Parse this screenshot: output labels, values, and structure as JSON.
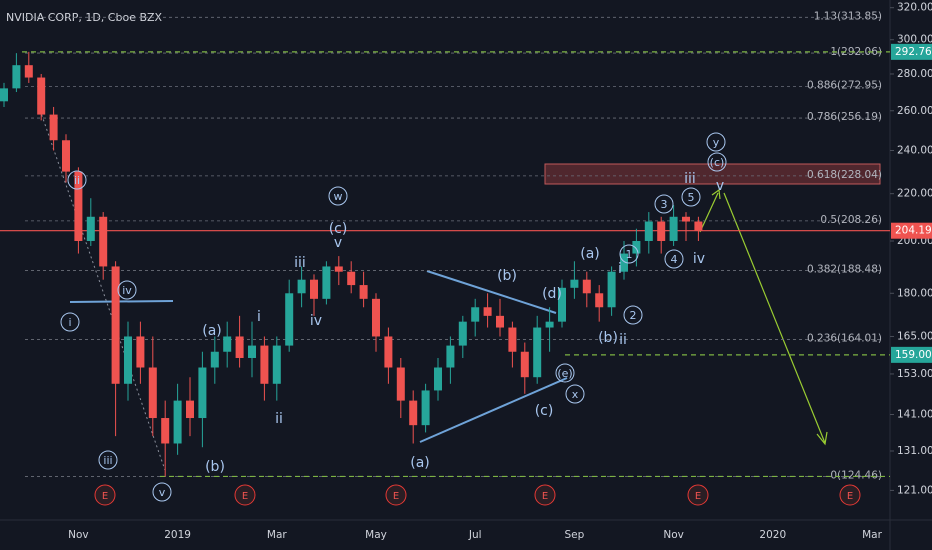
{
  "chart_data": {
    "type": "candlestick",
    "title": "NVIDIA CORP, 1D, Cboe BZX",
    "log_scale": true,
    "grid": false,
    "up_color": "#26a69a",
    "down_color": "#ef5350",
    "ylim": [
      114,
      325
    ],
    "yticks": [
      {
        "value": 320,
        "label": "320.00"
      },
      {
        "value": 300,
        "label": "300.00"
      },
      {
        "value": 280,
        "label": "280.00"
      },
      {
        "value": 260,
        "label": "260.00"
      },
      {
        "value": 240,
        "label": "240.00"
      },
      {
        "value": 220,
        "label": "220.00"
      },
      {
        "value": 200,
        "label": "200.00"
      },
      {
        "value": 180,
        "label": "180.00"
      },
      {
        "value": 165,
        "label": "165.00"
      },
      {
        "value": 153,
        "label": "153.00"
      },
      {
        "value": 141,
        "label": "141.00"
      },
      {
        "value": 131,
        "label": "131.00"
      },
      {
        "value": 121,
        "label": "121.00"
      }
    ],
    "categories": [
      null,
      null,
      null,
      null,
      null,
      null,
      "Nov",
      null,
      null,
      null,
      null,
      null,
      null,
      null,
      "2019",
      null,
      null,
      null,
      null,
      null,
      null,
      null,
      "Mar",
      null,
      null,
      null,
      null,
      null,
      null,
      null,
      "May",
      null,
      null,
      null,
      null,
      null,
      null,
      null,
      "Jul",
      null,
      null,
      null,
      null,
      null,
      null,
      null,
      "Sep",
      null,
      null,
      null,
      null,
      null,
      null,
      null,
      "Nov",
      null,
      null,
      null,
      null,
      null,
      null,
      null,
      "2020",
      null,
      null,
      null,
      null,
      null,
      null,
      null,
      "Mar",
      null
    ],
    "open": [
      265,
      272,
      285,
      278,
      258,
      245,
      230,
      200,
      210,
      190,
      150,
      165,
      155,
      140,
      133,
      145,
      140,
      155,
      160,
      165,
      158,
      162,
      150,
      162,
      180,
      185,
      178,
      190,
      188,
      183,
      178,
      165,
      155,
      145,
      138,
      148,
      155,
      162,
      170,
      175,
      172,
      168,
      160,
      152,
      168,
      170,
      182,
      185,
      180,
      175,
      188,
      195,
      200,
      208,
      200,
      210,
      208,
      null,
      null,
      null,
      null,
      null,
      null,
      null,
      null,
      null,
      null,
      null,
      null,
      null,
      null,
      null
    ],
    "high": [
      275,
      292,
      292.76,
      280,
      262,
      248,
      232,
      218,
      212,
      192,
      170,
      170,
      165,
      145,
      150,
      152,
      160,
      165,
      170,
      172,
      170,
      165,
      165,
      185,
      190,
      187,
      192,
      194,
      192,
      188,
      180,
      168,
      158,
      148,
      150,
      158,
      165,
      172,
      178,
      180,
      178,
      170,
      163,
      172,
      175,
      185,
      192,
      188,
      183,
      190,
      200,
      205,
      212,
      210,
      215,
      212,
      210,
      null,
      null,
      null,
      null,
      null,
      null,
      null,
      null,
      null,
      null,
      null,
      null,
      null,
      null,
      null
    ],
    "low": [
      262,
      270,
      275,
      255,
      240,
      225,
      195,
      198,
      185,
      135,
      145,
      150,
      135,
      124.46,
      130,
      135,
      132,
      150,
      155,
      155,
      152,
      145,
      145,
      160,
      175,
      172,
      176,
      183,
      180,
      175,
      160,
      150,
      140,
      133,
      136,
      145,
      150,
      158,
      165,
      168,
      165,
      155,
      147,
      150,
      160,
      168,
      178,
      175,
      170,
      172,
      185,
      190,
      195,
      195,
      198,
      200,
      200,
      null,
      null,
      null,
      null,
      null,
      null,
      null,
      null,
      null,
      null,
      null,
      null,
      null,
      null,
      null
    ],
    "close": [
      272,
      285,
      278,
      258,
      245,
      230,
      200,
      210,
      190,
      150,
      165,
      155,
      140,
      133,
      145,
      140,
      155,
      160,
      165,
      158,
      162,
      150,
      162,
      180,
      185,
      178,
      190,
      188,
      183,
      178,
      165,
      155,
      145,
      138,
      148,
      155,
      162,
      170,
      175,
      172,
      168,
      160,
      152,
      168,
      170,
      182,
      185,
      180,
      175,
      188,
      195,
      200,
      208,
      200,
      210,
      208,
      204.19,
      null,
      null,
      null,
      null,
      null,
      null,
      null,
      null,
      null,
      null,
      null,
      null,
      null,
      null,
      null
    ],
    "price_markers": [
      {
        "value": 292.76,
        "label": "292.76",
        "color": "#26a69a"
      },
      {
        "value": 204.19,
        "label": "204.19",
        "color": "#ef5350"
      },
      {
        "value": 159,
        "label": "159.00",
        "color": "#26a69a"
      }
    ],
    "fib_levels": [
      {
        "label": "1.13(313.85)",
        "value": 313.85
      },
      {
        "label": "1(292.06)",
        "value": 292.06
      },
      {
        "label": "0.886(272.95)",
        "value": 272.95
      },
      {
        "label": "0.786(256.19)",
        "value": 256.19
      },
      {
        "label": "0.618(228.04)",
        "value": 228.04
      },
      {
        "label": "0.5(208.26)",
        "value": 208.26
      },
      {
        "label": "0.382(188.48)",
        "value": 188.48
      },
      {
        "label": "0.236(164.01)",
        "value": 164.01
      },
      {
        "label": "0(124.46)",
        "value": 124.46
      }
    ],
    "annotations": [
      "ii",
      "iv",
      "i",
      "iii",
      "v",
      "(b)",
      "(a)",
      "i",
      "ii",
      "iii",
      "iv",
      "w",
      "(c)",
      "v",
      "(a)",
      "(b)",
      "(d)",
      "(e)",
      "(c)",
      "x",
      "(a)",
      "(b)",
      "ii",
      "i",
      "1",
      "2",
      "3",
      "4",
      "5",
      "iii",
      "iv",
      "v",
      "(c)",
      "y"
    ],
    "events": [
      "E",
      "E",
      "E",
      "E",
      "E",
      "E"
    ]
  }
}
